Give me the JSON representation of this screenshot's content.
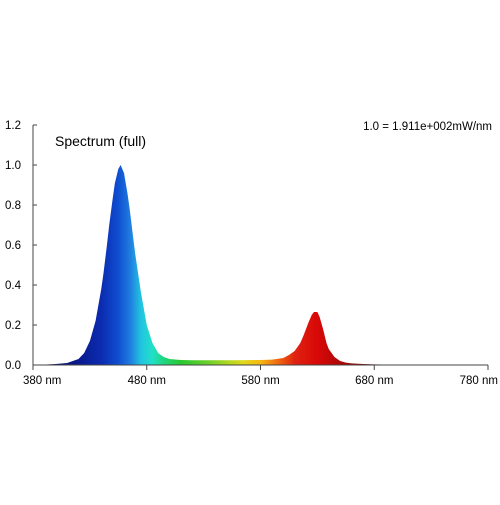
{
  "chart_data": {
    "type": "area",
    "title": "Spectrum (full)",
    "annotation": "1.0 = 1.911e+002mW/nm",
    "xlabel": "",
    "ylabel": "",
    "x_unit": "nm",
    "xlim": [
      380,
      780
    ],
    "ylim": [
      0,
      1.2
    ],
    "x_ticks": [
      380,
      480,
      580,
      680,
      780
    ],
    "x_tick_labels": [
      "380 nm",
      "480 nm",
      "580 nm",
      "680 nm",
      "780 nm"
    ],
    "y_ticks": [
      0.0,
      0.2,
      0.4,
      0.6,
      0.8,
      1.0,
      1.2
    ],
    "y_tick_labels": [
      "0.0",
      "0.2",
      "0.4",
      "0.6",
      "0.8",
      "1.0",
      "1.2"
    ],
    "grid": false,
    "legend": "none",
    "fill": "spectral-gradient",
    "series": [
      {
        "x": [
          380,
          390,
          400,
          410,
          420,
          425,
          430,
          435,
          440,
          442,
          445,
          447,
          450,
          452,
          455,
          457,
          460,
          463,
          465,
          468,
          470,
          475,
          480,
          485,
          490,
          495,
          500,
          510,
          520,
          540,
          560,
          580,
          590,
          600,
          605,
          610,
          615,
          618,
          620,
          622,
          625,
          627,
          630,
          632,
          635,
          638,
          640,
          645,
          650,
          655,
          660,
          670,
          680,
          700,
          720,
          740,
          760,
          780
        ],
        "y": [
          0.0,
          0.002,
          0.005,
          0.01,
          0.03,
          0.06,
          0.12,
          0.22,
          0.38,
          0.46,
          0.6,
          0.7,
          0.83,
          0.91,
          0.98,
          1.0,
          0.96,
          0.86,
          0.78,
          0.64,
          0.55,
          0.36,
          0.2,
          0.11,
          0.06,
          0.04,
          0.03,
          0.025,
          0.024,
          0.024,
          0.024,
          0.025,
          0.027,
          0.035,
          0.05,
          0.07,
          0.11,
          0.15,
          0.18,
          0.21,
          0.25,
          0.265,
          0.265,
          0.24,
          0.18,
          0.11,
          0.08,
          0.04,
          0.02,
          0.012,
          0.008,
          0.005,
          0.003,
          0.002,
          0.001,
          0.0,
          0.0,
          0.0
        ]
      }
    ]
  }
}
